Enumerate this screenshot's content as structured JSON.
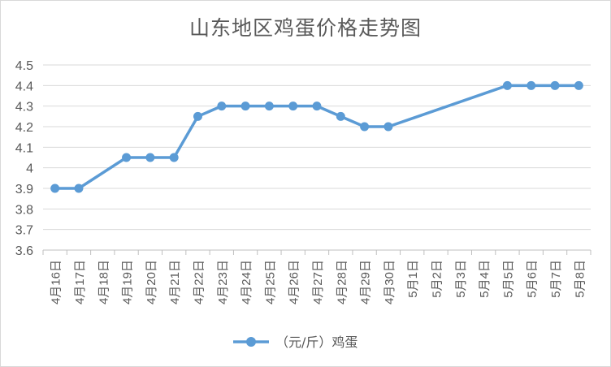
{
  "chart_data": {
    "type": "line",
    "title": "山东地区鸡蛋价格走势图",
    "categories": [
      "4月16日",
      "4月17日",
      "4月18日",
      "4月19日",
      "4月20日",
      "4月21日",
      "4月22日",
      "4月23日",
      "4月24日",
      "4月25日",
      "4月26日",
      "4月27日",
      "4月28日",
      "4月29日",
      "4月30日",
      "5月1日",
      "5月2日",
      "5月3日",
      "5月4日",
      "5月5日",
      "5月6日",
      "5月7日",
      "5月8日"
    ],
    "series": [
      {
        "name": "（元/斤）鸡蛋",
        "values": [
          3.9,
          3.9,
          null,
          4.05,
          4.05,
          4.05,
          4.25,
          4.3,
          4.3,
          4.3,
          4.3,
          4.3,
          4.25,
          4.2,
          4.2,
          null,
          null,
          null,
          null,
          4.4,
          4.4,
          4.4,
          4.4
        ],
        "color": "#5b9bd5"
      }
    ],
    "yticks": [
      "3.6",
      "3.7",
      "3.8",
      "3.9",
      "4",
      "4.1",
      "4.2",
      "4.3",
      "4.4",
      "4.5"
    ],
    "ylim": [
      3.6,
      4.5
    ],
    "gaps": "connect",
    "grid": true,
    "legend": "bottom"
  }
}
